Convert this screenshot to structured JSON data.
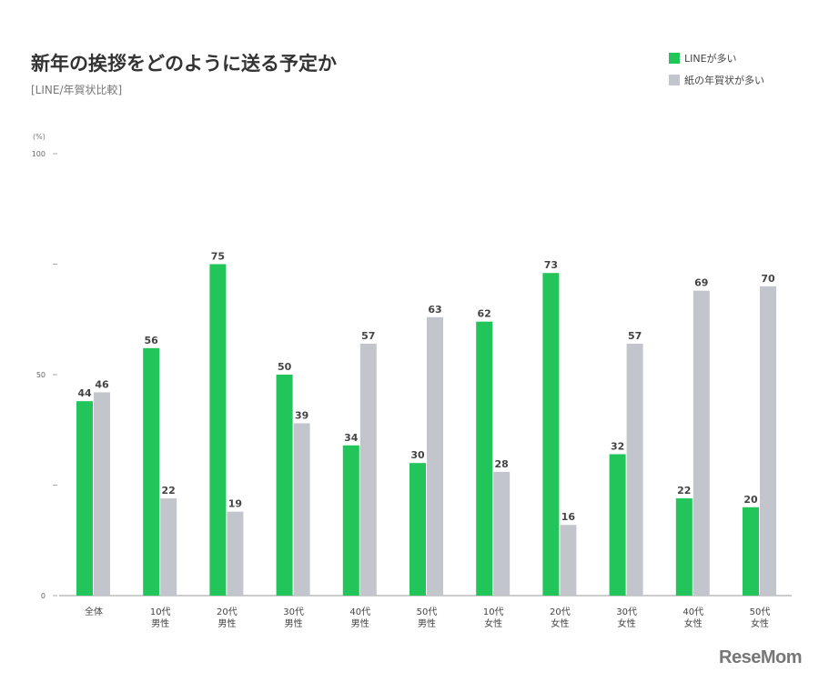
{
  "chart_data": {
    "type": "bar",
    "title": "新年の挨拶をどのように送る予定か",
    "subtitle": "[LINE/年賀状比較]",
    "ylabel": "(%)",
    "ylim": [
      0,
      100
    ],
    "yticks": [
      0,
      25,
      50,
      75,
      100
    ],
    "ytick_labels": [
      "0",
      "",
      "50",
      "",
      "100"
    ],
    "grid": false,
    "legend_position": "top-right",
    "categories": [
      [
        "全体"
      ],
      [
        "10代",
        "男性"
      ],
      [
        "20代",
        "男性"
      ],
      [
        "30代",
        "男性"
      ],
      [
        "40代",
        "男性"
      ],
      [
        "50代",
        "男性"
      ],
      [
        "10代",
        "女性"
      ],
      [
        "20代",
        "女性"
      ],
      [
        "30代",
        "女性"
      ],
      [
        "40代",
        "女性"
      ],
      [
        "50代",
        "女性"
      ]
    ],
    "series": [
      {
        "name": "LINEが多い",
        "color": "#22c55a",
        "values": [
          44,
          56,
          75,
          50,
          34,
          30,
          62,
          73,
          32,
          22,
          20
        ]
      },
      {
        "name": "紙の年賀状が多い",
        "color": "#c3c5cd",
        "values": [
          46,
          22,
          19,
          39,
          57,
          63,
          28,
          16,
          57,
          69,
          70
        ]
      }
    ]
  },
  "logo": "ReseMom"
}
